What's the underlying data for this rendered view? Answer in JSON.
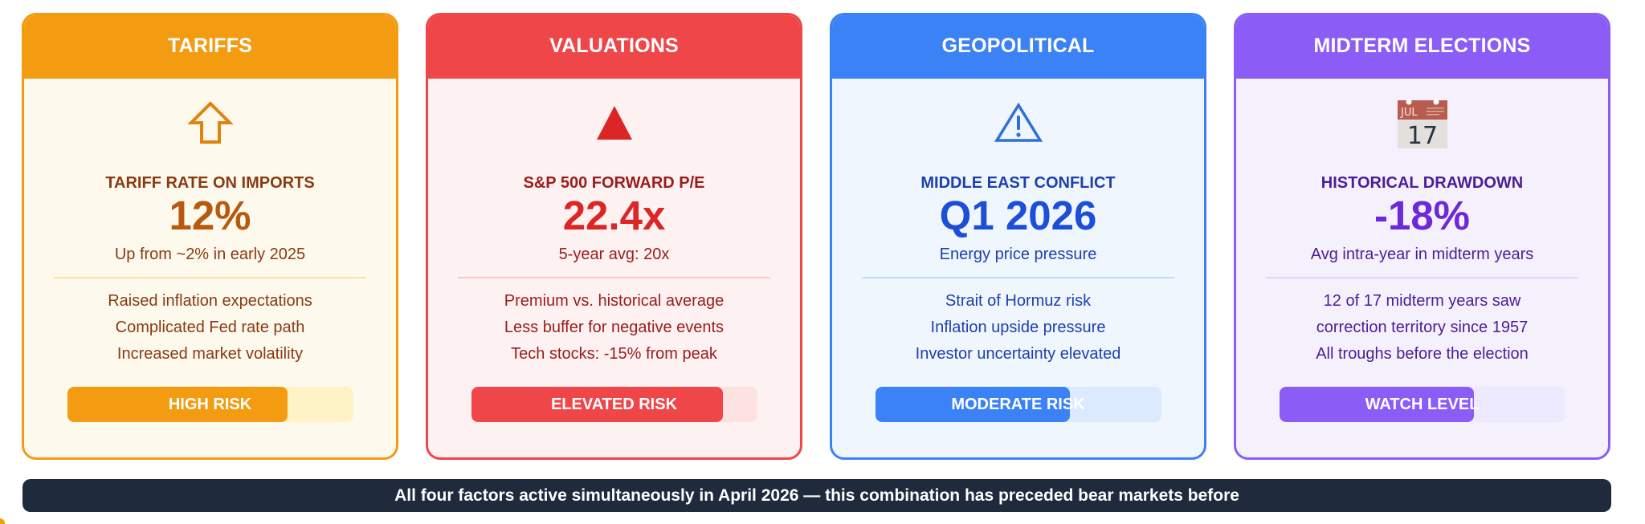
{
  "cards": [
    {
      "theme": "t-tariffs",
      "title": "TARIFFS",
      "icon": "up-arrow-outline-icon",
      "metric_label": "TARIFF RATE ON IMPORTS",
      "metric_value": "12%",
      "metric_sub": "Up from ~2% in early 2025",
      "bullets": [
        "Raised inflation expectations",
        "Complicated Fed rate path",
        "Increased market volatility"
      ],
      "risk_label": "HIGH RISK",
      "risk_fill_pct": 77,
      "colors": {
        "accent": "#f39c12",
        "background": "#fdf9ec"
      }
    },
    {
      "theme": "t-valuations",
      "title": "VALUATIONS",
      "icon": "red-triangle-up-icon",
      "metric_label": "S&P 500 FORWARD P/E",
      "metric_value": "22.4x",
      "metric_sub": "5-year avg: 20x",
      "bullets": [
        "Premium vs. historical average",
        "Less buffer for negative events",
        "Tech stocks: -15% from peak"
      ],
      "risk_label": "ELEVATED RISK",
      "risk_fill_pct": 88,
      "colors": {
        "accent": "#ef4649",
        "background": "#fdf1f1"
      }
    },
    {
      "theme": "t-geo",
      "title": "GEOPOLITICAL",
      "icon": "warning-triangle-icon",
      "metric_label": "MIDDLE EAST CONFLICT",
      "metric_value": "Q1 2026",
      "metric_sub": "Energy price pressure",
      "bullets": [
        "Strait of Hormuz risk",
        "Inflation upside pressure",
        "Investor uncertainty elevated"
      ],
      "risk_label": "MODERATE RISK",
      "risk_fill_pct": 68,
      "colors": {
        "accent": "#3b82f6",
        "background": "#eff6fe"
      }
    },
    {
      "theme": "t-midterm",
      "title": "MIDTERM ELECTIONS",
      "icon": "calendar-icon",
      "calendar": {
        "month": "JUL",
        "day": "17"
      },
      "metric_label": "HISTORICAL DRAWDOWN",
      "metric_value": "-18%",
      "metric_sub": "Avg intra-year in midterm years",
      "bullets": [
        "12 of 17 midterm years saw",
        "correction territory since 1957",
        "All troughs before the election"
      ],
      "risk_label": "WATCH LEVEL",
      "risk_fill_pct": 68,
      "colors": {
        "accent": "#8b5cf6",
        "background": "#f4f1fd"
      }
    }
  ],
  "banner": {
    "text": "All four factors active simultaneously in April 2026 — this combination has preceded bear markets before",
    "color": "#1f2a3c"
  }
}
